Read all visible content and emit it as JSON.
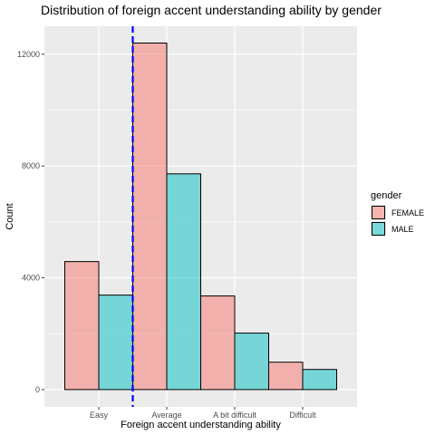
{
  "chart_data": {
    "type": "bar",
    "title": "Distribution of foreign accent understanding ability by gender",
    "xlabel": "Foreign accent understanding ability",
    "ylabel": "Count",
    "categories": [
      "Easy",
      "Average",
      "A bit difficult",
      "Difficult"
    ],
    "series": [
      {
        "name": "FEMALE",
        "values": [
          4580,
          12400,
          3350,
          980
        ],
        "color": "#F8766D"
      },
      {
        "name": "MALE",
        "values": [
          3380,
          7720,
          2020,
          720
        ],
        "color": "#00BFC4"
      }
    ],
    "y_ticks": [
      0,
      4000,
      8000,
      12000
    ],
    "y_tick_labels": [
      "0",
      "4000",
      "8000",
      "12000"
    ],
    "ylim": [
      -620,
      13000
    ],
    "reference_line": {
      "x_position": "between Easy and Average",
      "color": "#0000FF",
      "style": "dashed"
    },
    "legend": {
      "title": "gender",
      "placement": "right"
    },
    "grid": true,
    "panel_background": "#EBEBEB",
    "bar_outline": "#000000"
  }
}
